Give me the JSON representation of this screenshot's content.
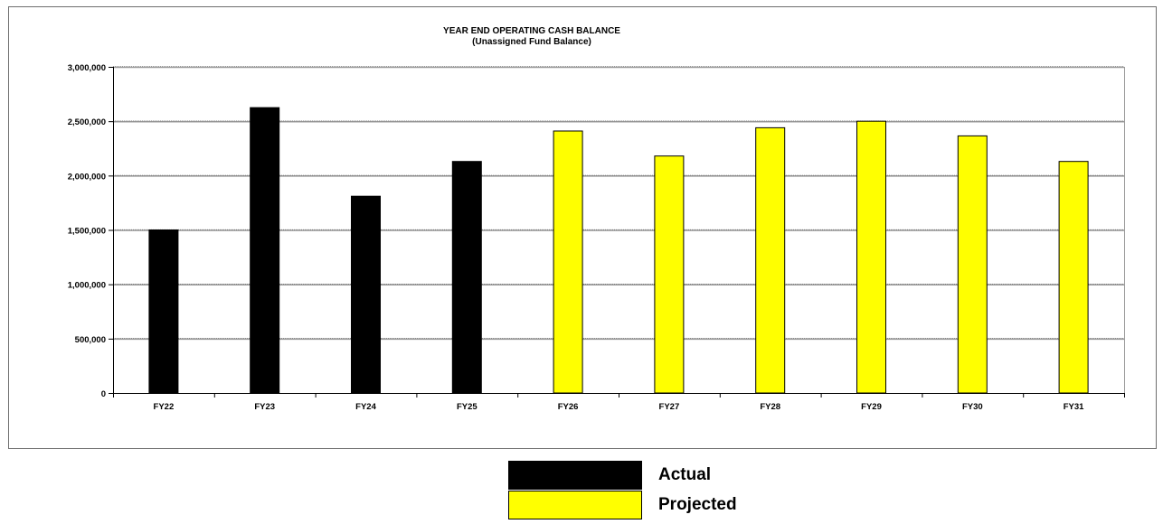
{
  "chart_data": {
    "type": "bar",
    "title": "YEAR END OPERATING CASH BALANCE",
    "subtitle": "(Unassigned Fund Balance)",
    "xlabel": "",
    "ylabel": "",
    "categories": [
      "FY22",
      "FY23",
      "FY24",
      "FY25",
      "FY26",
      "FY27",
      "FY28",
      "FY29",
      "FY30",
      "FY31"
    ],
    "values": [
      1500000,
      2625000,
      1810000,
      2130000,
      2410000,
      2180000,
      2440000,
      2500000,
      2365000,
      2130000
    ],
    "series_kind": [
      "Actual",
      "Actual",
      "Actual",
      "Actual",
      "Projected",
      "Projected",
      "Projected",
      "Projected",
      "Projected",
      "Projected"
    ],
    "ylim": [
      0,
      3000000
    ],
    "yticks": [
      0,
      500000,
      1000000,
      1500000,
      2000000,
      2500000,
      3000000
    ],
    "ytick_labels": [
      "0",
      "500,000",
      "1,000,000",
      "1,500,000",
      "2,000,000",
      "2,500,000",
      "3,000,000"
    ],
    "grid": true,
    "legend": {
      "placement": "bottom-center",
      "entries": [
        {
          "name": "Actual",
          "color": "#000000"
        },
        {
          "name": "Projected",
          "color": "#ffff00"
        }
      ]
    },
    "colors": {
      "Actual": "#000000",
      "Projected": "#ffff00"
    }
  }
}
